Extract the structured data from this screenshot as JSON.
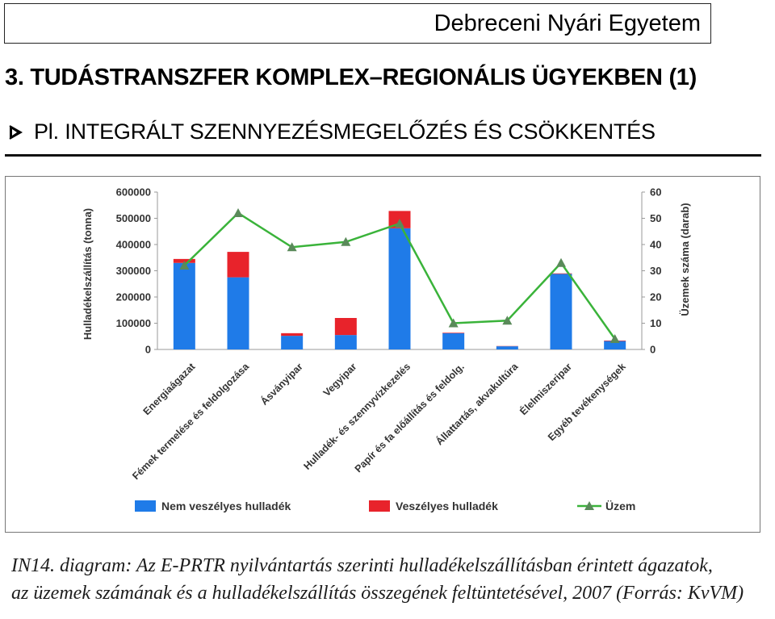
{
  "header": {
    "title": "Debreceni Nyári Egyetem"
  },
  "section": {
    "title": "3. TUDÁSTRANSZFER KOMPLEX–REGIONÁLIS ÜGYEKBEN (1)"
  },
  "subtitle": {
    "text": "Pl.  INTEGRÁLT SZENNYEZÉSMEGELŐZÉS ÉS CSÖKKENTÉS"
  },
  "caption": {
    "line1": "IN14. diagram: Az E-PRTR nyilvántartás szerinti hulladékelszállításban érintett ágazatok,",
    "line2": "az üzemek számának és a hulladékelszállítás összegének feltüntetésével, 2007 (Forrás: KvVM)"
  },
  "colors": {
    "non_hazardous": "#1f7be8",
    "hazardous": "#e8232b",
    "plants": "#3ab33a",
    "marker": "#5a8a5a"
  },
  "chart_data": {
    "type": "bar",
    "stacked": true,
    "categories": [
      "Energiaágazat",
      "Fémek termelése és feldolgozása",
      "Ásványipar",
      "Vegyipar",
      "Hulladék- és szennyvízkezelés",
      "Papír és fa előállítás és feldolg.",
      "Állattartás, akvakultúra",
      "Élelmiszeripar",
      "Egyéb tevékenységek"
    ],
    "series": [
      {
        "name": "Nem veszélyes hulladék",
        "type": "bar",
        "axis": "left",
        "values": [
          330000,
          275000,
          52000,
          55000,
          462000,
          62000,
          12000,
          288000,
          32000
        ]
      },
      {
        "name": "Veszélyes hulladék",
        "type": "bar",
        "axis": "left",
        "values": [
          15000,
          97000,
          10000,
          65000,
          66000,
          2000,
          1000,
          2000,
          2000
        ]
      },
      {
        "name": "Üzem",
        "type": "line",
        "axis": "right",
        "values": [
          32,
          52,
          39,
          41,
          48,
          10,
          11,
          33,
          4
        ]
      }
    ],
    "ylabel": "Hulladékelszállítás (tonna)",
    "y2label": "Üzemek száma (darab)",
    "ylim": [
      0,
      600000
    ],
    "y2lim": [
      0,
      60
    ],
    "yticks": [
      "600000",
      "500000",
      "400000",
      "300000",
      "200000",
      "100000",
      "0"
    ],
    "y2ticks": [
      "60",
      "50",
      "40",
      "30",
      "20",
      "10",
      "0"
    ],
    "legend": "bottom",
    "grid": false
  }
}
